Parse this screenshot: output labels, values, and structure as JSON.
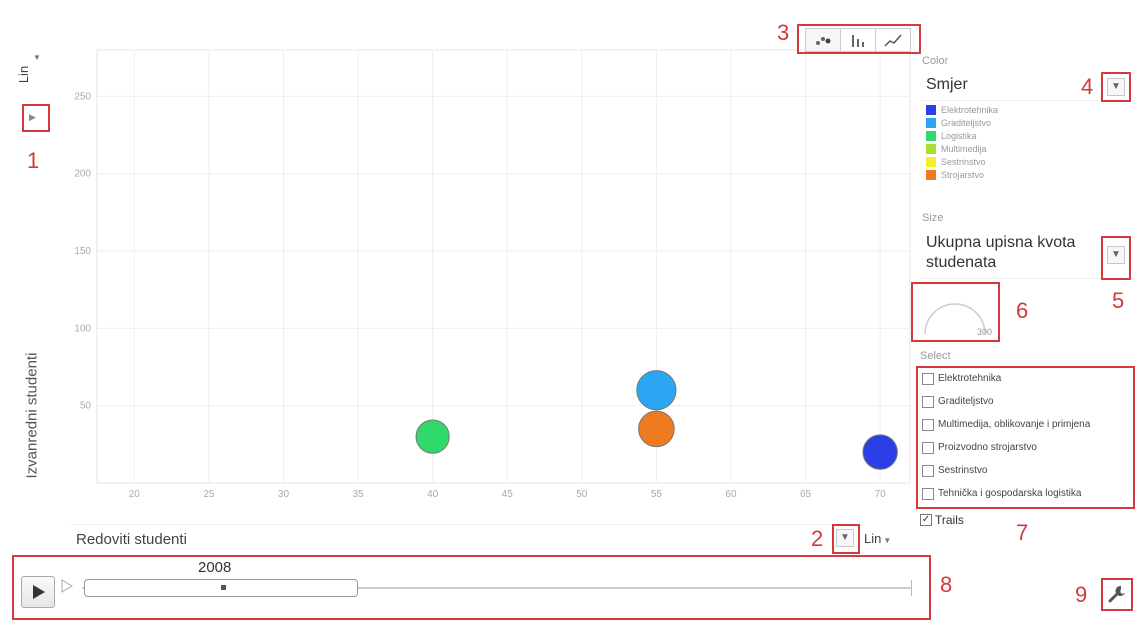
{
  "axes": {
    "y_scale": "Lin",
    "y_label": "Izvanredni studenti",
    "x_label": "Redoviti studenti",
    "x_scale": "Lin"
  },
  "chart_type_buttons": [
    "scatter-icon",
    "bar-icon",
    "line-icon"
  ],
  "color_panel": {
    "heading": "Color",
    "selected": "Smjer",
    "legend": [
      {
        "label": "Elektrotehnika",
        "color": "#2b3fe6"
      },
      {
        "label": "Graditeljstvo",
        "color": "#2aa6f2"
      },
      {
        "label": "Logistika",
        "color": "#2fd96a"
      },
      {
        "label": "Multimedija",
        "color": "#a8e02e"
      },
      {
        "label": "Sestrinstvo",
        "color": "#f2f02a"
      },
      {
        "label": "Strojarstvo",
        "color": "#f07a22"
      }
    ]
  },
  "size_panel": {
    "heading": "Size",
    "selected_line1": "Ukupna upisna kvota",
    "selected_line2": "studenata",
    "gauge_max": "300"
  },
  "select_panel": {
    "heading": "Select",
    "items": [
      "Elektrotehnika",
      "Graditeljstvo",
      "Multimedija, oblikovanje i primjena",
      "Proizvodno strojarstvo",
      "Sestrinstvo",
      "Tehnička i gospodarska logistika"
    ],
    "trails_label": "Trails",
    "trails_checked": true
  },
  "playback": {
    "year": "2008",
    "progress": 0.33
  },
  "callouts": [
    "1",
    "2",
    "3",
    "4",
    "5",
    "6",
    "7",
    "8",
    "9"
  ],
  "chart_data": {
    "type": "scatter",
    "xlabel": "Redoviti studenti",
    "ylabel": "Izvanredni studenti",
    "xlim": [
      17.5,
      72
    ],
    "ylim": [
      0,
      280
    ],
    "x_ticks": [
      20,
      25,
      30,
      35,
      40,
      45,
      50,
      55,
      60,
      65,
      70
    ],
    "y_ticks": [
      50,
      100,
      150,
      200,
      250
    ],
    "grid": true,
    "points": [
      {
        "x": 40,
        "y": 30,
        "series": "Logistika",
        "color": "#2fd96a",
        "size": 0.55
      },
      {
        "x": 55,
        "y": 60,
        "series": "Graditeljstvo",
        "color": "#2aa6f2",
        "size": 0.8
      },
      {
        "x": 55,
        "y": 35,
        "series": "Strojarstvo",
        "color": "#f07a22",
        "size": 0.65
      },
      {
        "x": 70,
        "y": 20,
        "series": "Elektrotehnika",
        "color": "#2b3fe6",
        "size": 0.6
      }
    ]
  }
}
